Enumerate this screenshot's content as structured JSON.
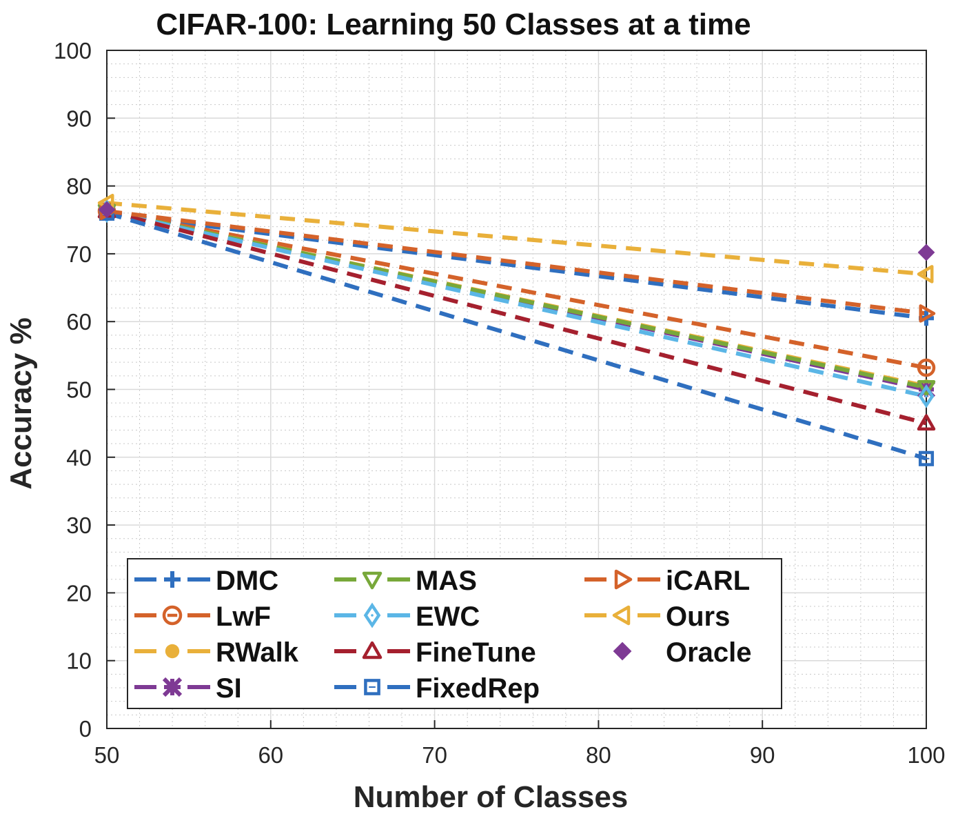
{
  "chart_data": {
    "type": "line",
    "title": "CIFAR-100: Learning 50 Classes at a time",
    "xlabel": "Number of Classes",
    "ylabel": "Accuracy %",
    "x": [
      50,
      100
    ],
    "xlim": [
      50,
      100
    ],
    "ylim": [
      0,
      100
    ],
    "xticks": [
      50,
      60,
      70,
      80,
      90,
      100
    ],
    "yticks": [
      0,
      10,
      20,
      30,
      40,
      50,
      60,
      70,
      80,
      90,
      100
    ],
    "grid": true,
    "legend_position": "bottom-left",
    "series": [
      {
        "name": "DMC",
        "values": [
          76.0,
          60.5
        ],
        "color": "#2f6fbf",
        "marker": "plus",
        "dashed": true
      },
      {
        "name": "LwF",
        "values": [
          76.3,
          53.2
        ],
        "color": "#d4622a",
        "marker": "circle-minus",
        "dashed": true
      },
      {
        "name": "RWalk",
        "values": [
          76.3,
          50.5
        ],
        "color": "#e9b03a",
        "marker": "dot",
        "dashed": true
      },
      {
        "name": "SI",
        "values": [
          76.3,
          50.0
        ],
        "color": "#7e3a94",
        "marker": "star",
        "dashed": true
      },
      {
        "name": "MAS",
        "values": [
          76.3,
          50.3
        ],
        "color": "#78a83a",
        "marker": "triangle-down",
        "dashed": true
      },
      {
        "name": "EWC",
        "values": [
          76.3,
          49.0
        ],
        "color": "#5bb6e6",
        "marker": "diamond",
        "dashed": true
      },
      {
        "name": "FineTune",
        "values": [
          76.3,
          45.0
        ],
        "color": "#a5202e",
        "marker": "triangle-up",
        "dashed": true
      },
      {
        "name": "FixedRep",
        "values": [
          76.0,
          39.8
        ],
        "color": "#2f6fbf",
        "marker": "square",
        "dashed": true
      },
      {
        "name": "iCARL",
        "values": [
          76.3,
          61.2
        ],
        "color": "#d4622a",
        "marker": "triangle-right",
        "dashed": true
      },
      {
        "name": "Ours",
        "values": [
          77.5,
          67.0
        ],
        "color": "#e9b03a",
        "marker": "triangle-left",
        "dashed": true
      },
      {
        "name": "Oracle",
        "values": [
          76.5,
          70.2
        ],
        "color": "#7e3a94",
        "marker": "diamond-filled",
        "dashed": false
      }
    ]
  }
}
